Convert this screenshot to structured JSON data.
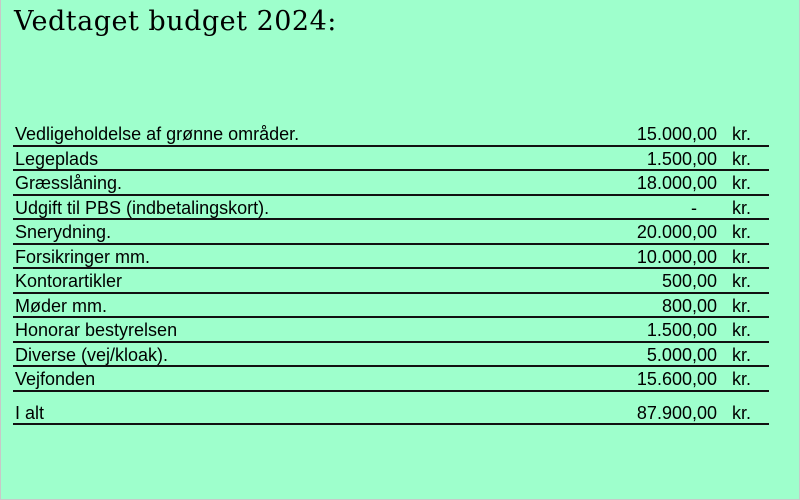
{
  "title": "Vedtaget budget 2024:",
  "rows": [
    {
      "label": "Vedligeholdelse af grønne områder.",
      "amount": "15.000,00",
      "unit": "kr."
    },
    {
      "label": "Legeplads",
      "amount": "1.500,00",
      "unit": "kr."
    },
    {
      "label": "Græsslåning.",
      "amount": "18.000,00",
      "unit": "kr."
    },
    {
      "label": "Udgift til PBS (indbetalingskort).",
      "amount": "-",
      "unit": "kr."
    },
    {
      "label": "Snerydning.",
      "amount": "20.000,00",
      "unit": "kr."
    },
    {
      "label": "Forsikringer mm.",
      "amount": "10.000,00",
      "unit": "kr."
    },
    {
      "label": "Kontorartikler",
      "amount": "500,00",
      "unit": "kr."
    },
    {
      "label": "Møder mm.",
      "amount": "800,00",
      "unit": "kr."
    },
    {
      "label": "Honorar bestyrelsen",
      "amount": "1.500,00",
      "unit": "kr."
    },
    {
      "label": "Diverse (vej/kloak).",
      "amount": "5.000,00",
      "unit": "kr."
    },
    {
      "label": "Vejfonden",
      "amount": "15.600,00",
      "unit": "kr."
    }
  ],
  "total": {
    "label": "I alt",
    "amount": "87.900,00",
    "unit": "kr."
  },
  "colors": {
    "background": "#9effcc",
    "text": "#000000",
    "rule": "#111111"
  }
}
